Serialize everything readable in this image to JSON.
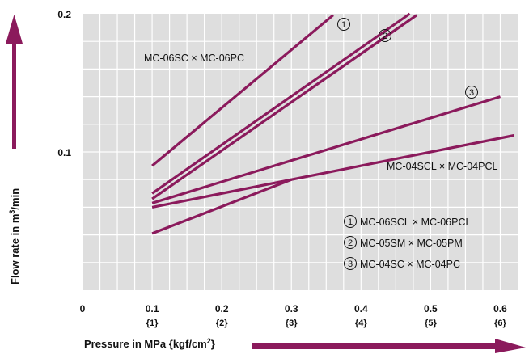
{
  "chart_data": {
    "type": "line",
    "xlabel_main": "Pressure in MPa {kgf/cm",
    "xlabel_sup": "2",
    "xlabel_end": "}",
    "ylabel_main": "Flow rate in m",
    "ylabel_sup": "3",
    "ylabel_end": "/min",
    "xlim": [
      0,
      0.75
    ],
    "ylim": [
      0,
      0.2
    ],
    "x_ticks": [
      {
        "value": 0,
        "label": "0",
        "sub": ""
      },
      {
        "value": 0.1,
        "label": "0.1",
        "sub": "{1}"
      },
      {
        "value": 0.2,
        "label": "0.2",
        "sub": "{2}"
      },
      {
        "value": 0.3,
        "label": "0.3",
        "sub": "{3}"
      },
      {
        "value": 0.4,
        "label": "0.4",
        "sub": "{4}"
      },
      {
        "value": 0.5,
        "label": "0.5",
        "sub": "{5}"
      },
      {
        "value": 0.6,
        "label": "0.6",
        "sub": "{6}"
      }
    ],
    "y_ticks": [
      {
        "value": 0.1,
        "label": "0.1"
      },
      {
        "value": 0.2,
        "label": "0.2"
      }
    ],
    "grid": true,
    "series": [
      {
        "name": "MC-06SC x MC-06PC",
        "x": [
          0.1,
          0.36
        ],
        "y": [
          0.09,
          0.199
        ]
      },
      {
        "name": "MC-06SCL x MC-06PCL",
        "x": [
          0.1,
          0.47
        ],
        "y": [
          0.07,
          0.2
        ]
      },
      {
        "name": "MC-05SM x MC-05PM",
        "x": [
          0.1,
          0.48
        ],
        "y": [
          0.066,
          0.199
        ]
      },
      {
        "name": "MC-04SC x MC-04PC",
        "x": [
          0.1,
          0.6
        ],
        "y": [
          0.063,
          0.14
        ]
      },
      {
        "name": "MC-04SCL x MC-04PCL",
        "x": [
          0.1,
          0.62
        ],
        "y": [
          0.06,
          0.112
        ]
      },
      {
        "name": "",
        "x": [
          0.1,
          0.3
        ],
        "y": [
          0.041,
          0.08
        ]
      }
    ],
    "annotations": {
      "mc06sc_label": "MC-06SC × MC-06PC",
      "mc04scl_label": "MC-04SCL × MC-04PCL",
      "marker1": "1",
      "marker2": "2",
      "marker3": "3"
    },
    "legend": [
      {
        "num": "1",
        "text": "MC-06SCL × MC-06PCL"
      },
      {
        "num": "2",
        "text": "MC-05SM × MC-05PM"
      },
      {
        "num": "3",
        "text": "MC-04SC × MC-04PC"
      }
    ],
    "colors": {
      "line": "#8b1a5c",
      "arrow": "#8b1a5c",
      "grid": "#ffffff",
      "plot_bg": "#dedede"
    }
  }
}
